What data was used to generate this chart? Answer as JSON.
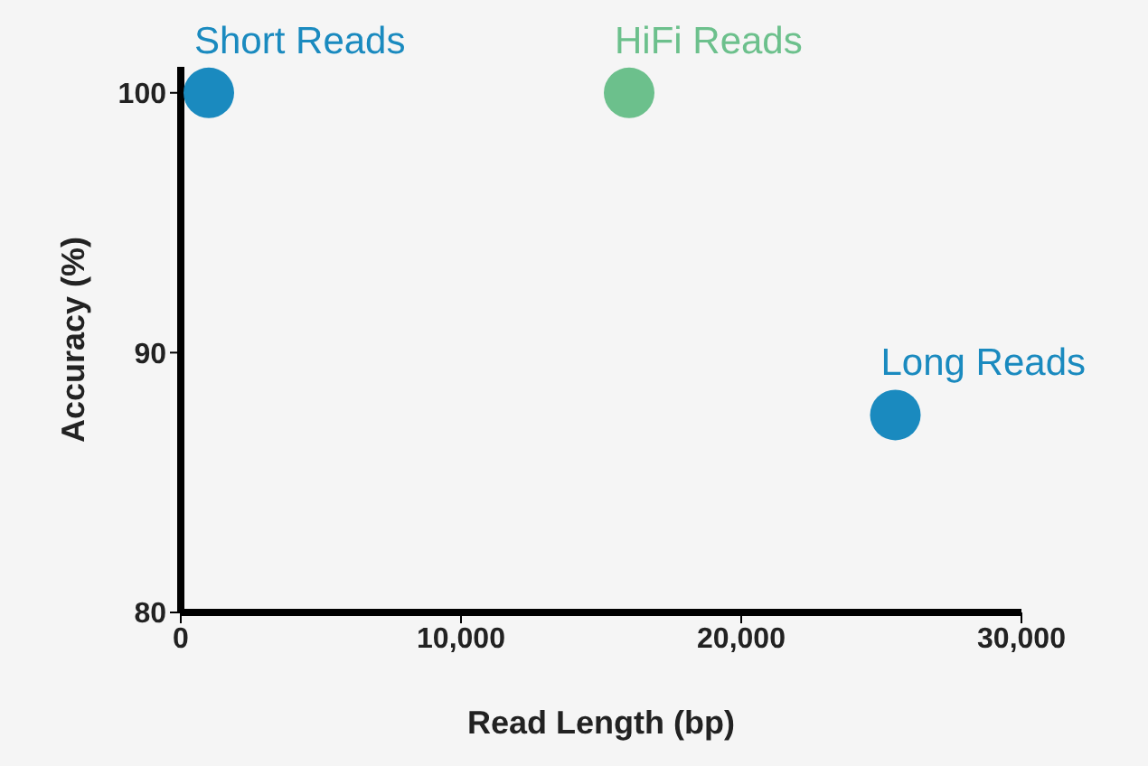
{
  "chart_data": {
    "type": "scatter",
    "xlabel": "Read Length (bp)",
    "ylabel": "Accuracy (%)",
    "series": [
      {
        "name": "Short Reads",
        "color": "#1a8abf",
        "x": [
          1000
        ],
        "values": [
          100
        ]
      },
      {
        "name": "HiFi Reads",
        "color": "#6cc08c",
        "x": [
          16000
        ],
        "values": [
          100
        ]
      },
      {
        "name": "Long Reads",
        "color": "#1a8abf",
        "x": [
          25500
        ],
        "values": [
          87.6
        ]
      }
    ],
    "xlim": [
      0,
      30000
    ],
    "xticks": [
      0,
      {
        "value": 10000,
        "label": "10,000"
      },
      {
        "value": 20000,
        "label": "20,000"
      },
      {
        "value": 30000,
        "label": "30,000"
      }
    ],
    "ylim": [
      80,
      101
    ],
    "yticks": [
      80,
      90,
      100
    ],
    "grid": false,
    "legend": false,
    "marker": "circle"
  }
}
